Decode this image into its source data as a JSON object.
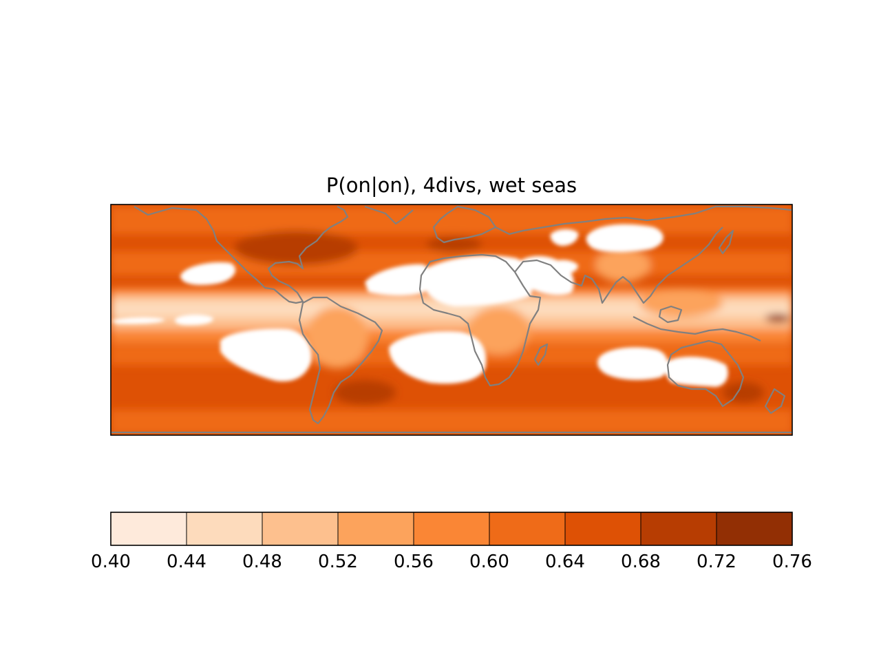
{
  "chart_data": {
    "type": "heatmap",
    "title": "P(on|on), 4divs, wet seas",
    "map": {
      "projection": "equirectangular",
      "coastlines": true,
      "coastline_color": "#808080",
      "masked_color": "#ffffff",
      "lon_range": [
        -180,
        180
      ],
      "lat_range": [
        -60,
        62
      ]
    },
    "colorbar": {
      "orientation": "horizontal",
      "levels": [
        "0.40",
        "0.44",
        "0.48",
        "0.52",
        "0.56",
        "0.60",
        "0.64",
        "0.68",
        "0.72",
        "0.76"
      ],
      "colors": [
        "#feeadb",
        "#fddbbc",
        "#fdc08e",
        "#fca35c",
        "#fa8635",
        "#ef6b18",
        "#de5105",
        "#b73d02",
        "#922f04"
      ]
    }
  }
}
